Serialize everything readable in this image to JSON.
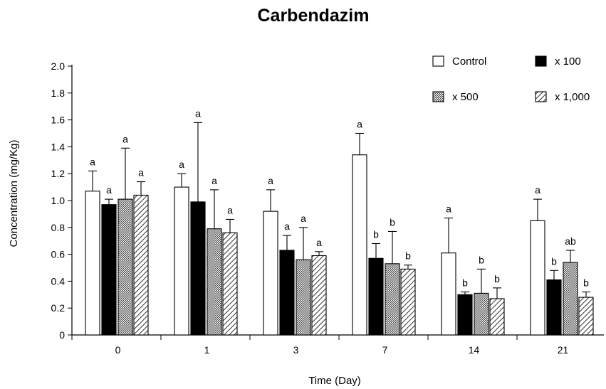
{
  "chart_data": {
    "type": "bar",
    "title": "Carbendazim",
    "xlabel": "Time (Day)",
    "ylabel": "Concentration (mg/Kg)",
    "ylim": [
      0,
      2.0
    ],
    "yticks": [
      "0",
      "0.2",
      "0.4",
      "0.6",
      "0.8",
      "1.0",
      "1.2",
      "1.4",
      "1.6",
      "1.8",
      "2.0"
    ],
    "categories": [
      "0",
      "1",
      "3",
      "7",
      "14",
      "21"
    ],
    "legend_position": "top-right",
    "grid": false,
    "error_bars": "upper only",
    "series": [
      {
        "name": "Control",
        "pattern": "white",
        "values": [
          1.07,
          1.1,
          0.92,
          1.34,
          0.61,
          0.85
        ],
        "errors": [
          0.15,
          0.1,
          0.16,
          0.16,
          0.26,
          0.16
        ],
        "letters": [
          "a",
          "a",
          "a",
          "a",
          "a",
          "a"
        ]
      },
      {
        "name": "x 100",
        "pattern": "black",
        "values": [
          0.97,
          0.99,
          0.63,
          0.57,
          0.3,
          0.41
        ],
        "errors": [
          0.04,
          0.59,
          0.11,
          0.11,
          0.02,
          0.07
        ],
        "letters": [
          "a",
          "a",
          "a",
          "b",
          "b",
          "b"
        ]
      },
      {
        "name": "x 500",
        "pattern": "crosshatch",
        "values": [
          1.01,
          0.79,
          0.56,
          0.53,
          0.31,
          0.54
        ],
        "errors": [
          0.38,
          0.29,
          0.24,
          0.24,
          0.18,
          0.09
        ],
        "letters": [
          "a",
          "a",
          "a",
          "b",
          "b",
          "ab"
        ]
      },
      {
        "name": "x 1,000",
        "pattern": "diagonal",
        "values": [
          1.04,
          0.76,
          0.59,
          0.49,
          0.27,
          0.28
        ],
        "errors": [
          0.1,
          0.1,
          0.03,
          0.03,
          0.08,
          0.04
        ],
        "letters": [
          "a",
          "a",
          "a",
          "b",
          "b",
          "b"
        ]
      }
    ]
  }
}
